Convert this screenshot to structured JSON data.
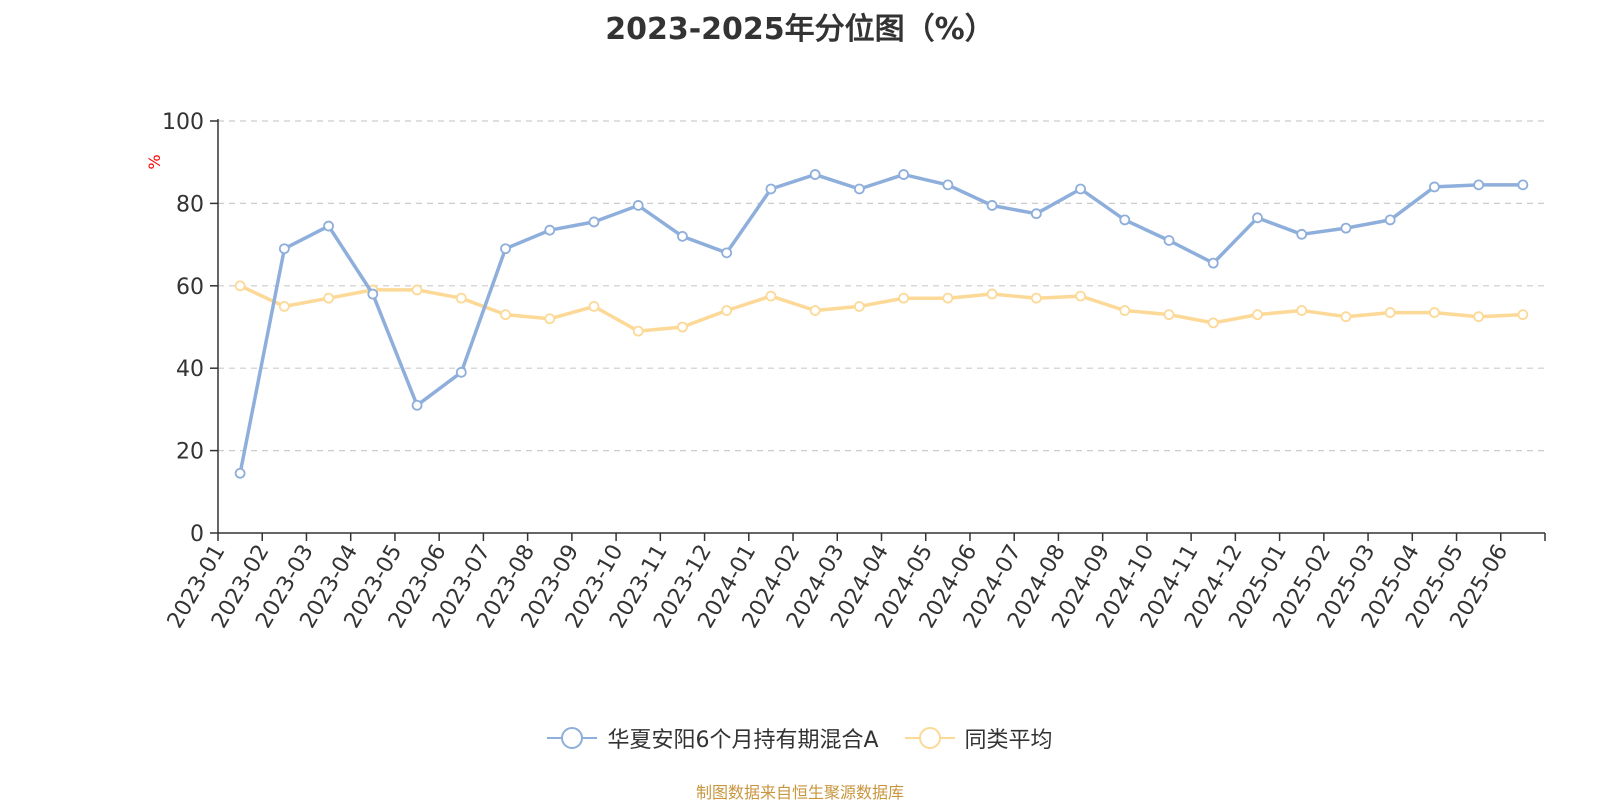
{
  "title": "2023-2025年分位图（%）",
  "source_note": "制图数据来自恒生聚源数据库",
  "colors": {
    "series1": "#8eaedb",
    "series2": "#fcd997",
    "axis": "#333333",
    "grid": "#cccccc",
    "ylabel": "#ff0000",
    "source": "#c8963e"
  },
  "chart_data": {
    "type": "line",
    "title": "2023-2025年分位图（%）",
    "ylabel": "%",
    "xlabel": "",
    "ylim": [
      0,
      100
    ],
    "yticks": [
      0,
      20,
      40,
      60,
      80,
      100
    ],
    "grid": true,
    "legend_position": "bottom",
    "categories": [
      "2023-01",
      "2023-02",
      "2023-03",
      "2023-04",
      "2023-05",
      "2023-06",
      "2023-07",
      "2023-08",
      "2023-09",
      "2023-10",
      "2023-11",
      "2023-12",
      "2024-01",
      "2024-02",
      "2024-03",
      "2024-04",
      "2024-05",
      "2024-06",
      "2024-07",
      "2024-08",
      "2024-09",
      "2024-10",
      "2024-11",
      "2024-12",
      "2025-01",
      "2025-02",
      "2025-03",
      "2025-04",
      "2025-05",
      "2025-06"
    ],
    "series": [
      {
        "name": "华夏安阳6个月持有期混合A",
        "values": [
          14.5,
          69,
          74.5,
          58,
          31,
          39,
          69,
          73.5,
          75.5,
          79.5,
          72,
          68,
          83.5,
          87,
          83.5,
          87,
          84.5,
          79.5,
          77.5,
          83.5,
          76,
          71,
          65.5,
          76.5,
          72.5,
          74,
          76,
          84,
          84.5,
          84.5
        ]
      },
      {
        "name": "同类平均",
        "values": [
          60,
          55,
          57,
          59,
          59,
          57,
          53,
          52,
          55,
          49,
          50,
          54,
          57.5,
          54,
          55,
          57,
          57,
          58,
          57,
          57.5,
          54,
          53,
          51,
          53,
          54,
          52.5,
          53.5,
          53.5,
          52.5,
          53
        ]
      }
    ]
  }
}
